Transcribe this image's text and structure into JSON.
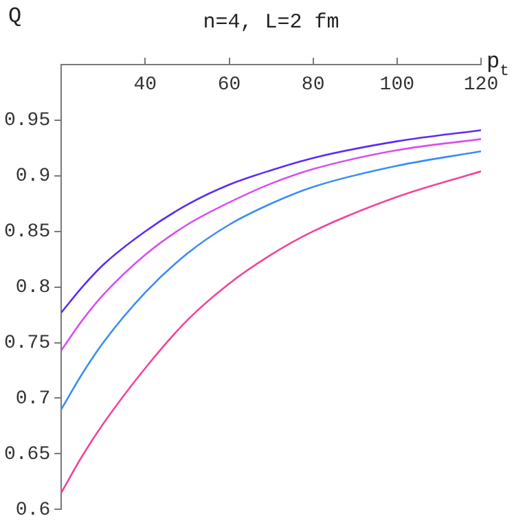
{
  "chart_data": {
    "type": "line",
    "title": "n=4, L=2 fm",
    "xlabel": "p$_{t}$",
    "ylabel": "Q",
    "x": [
      20,
      25,
      30,
      40,
      50,
      60,
      70,
      80,
      100,
      120
    ],
    "series": [
      {
        "color": "#5b2bf5",
        "values": [
          0.777,
          0.8,
          0.82,
          0.85,
          0.874,
          0.892,
          0.905,
          0.916,
          0.931,
          0.941
        ]
      },
      {
        "color": "#d84ef0",
        "values": [
          0.743,
          0.77,
          0.793,
          0.829,
          0.856,
          0.876,
          0.893,
          0.906,
          0.923,
          0.933
        ]
      },
      {
        "color": "#3a8cf5",
        "values": [
          0.69,
          0.722,
          0.75,
          0.795,
          0.83,
          0.856,
          0.875,
          0.89,
          0.909,
          0.922
        ]
      },
      {
        "color": "#f0449c",
        "values": [
          0.615,
          0.648,
          0.677,
          0.727,
          0.77,
          0.803,
          0.829,
          0.85,
          0.881,
          0.904
        ]
      }
    ],
    "xlim": [
      20,
      120
    ],
    "xticks": [
      40,
      60,
      80,
      100,
      120
    ],
    "ylim": [
      0.6,
      1.0
    ],
    "yticks": [
      0.6,
      0.65,
      0.7,
      0.75,
      0.8,
      0.85,
      0.9,
      0.95
    ],
    "grid": false,
    "legend": false,
    "marker": "none",
    "line_style": "solid"
  }
}
